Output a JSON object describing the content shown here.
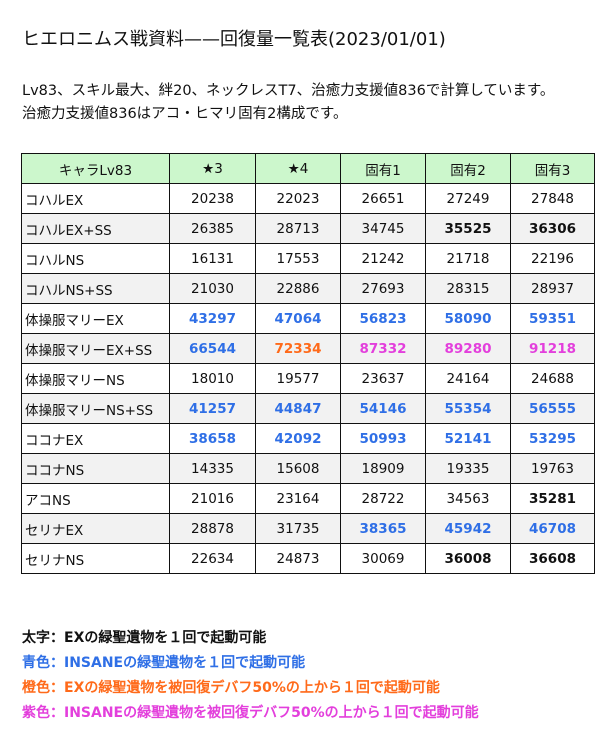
{
  "title": "ヒエロニムス戦資料——回復量一覧表(2023/01/01)",
  "description": [
    "Lv83、スキル最大、絆20、ネックレスT7、治癒力支援値836で計算しています。",
    "治癒力支援値836はアコ・ヒマリ固有2構成です。"
  ],
  "colors": {
    "header_bg": "#ccf7cc",
    "alt_row_bg": "#f2f2f2",
    "bold": "#111111",
    "blue": "#2f6fe6",
    "orange": "#ff6a1a",
    "magenta": "#e33fdc"
  },
  "table": {
    "headers": [
      "キャラLv83",
      "★3",
      "★4",
      "固有1",
      "固有2",
      "固有3"
    ],
    "rows": [
      {
        "name": "コハルEX",
        "values": [
          "20238",
          "22023",
          "26651",
          "27249",
          "27848"
        ],
        "styles": [
          "normal",
          "normal",
          "normal",
          "normal",
          "normal"
        ]
      },
      {
        "name": "コハルEX+SS",
        "values": [
          "26385",
          "28713",
          "34745",
          "35525",
          "36306"
        ],
        "styles": [
          "normal",
          "normal",
          "normal",
          "bold",
          "bold"
        ]
      },
      {
        "name": "コハルNS",
        "values": [
          "16131",
          "17553",
          "21242",
          "21718",
          "22196"
        ],
        "styles": [
          "normal",
          "normal",
          "normal",
          "normal",
          "normal"
        ]
      },
      {
        "name": "コハルNS+SS",
        "values": [
          "21030",
          "22886",
          "27693",
          "28315",
          "28937"
        ],
        "styles": [
          "normal",
          "normal",
          "normal",
          "normal",
          "normal"
        ]
      },
      {
        "name": "体操服マリーEX",
        "values": [
          "43297",
          "47064",
          "56823",
          "58090",
          "59351"
        ],
        "styles": [
          "blue",
          "blue",
          "blue",
          "blue",
          "blue"
        ]
      },
      {
        "name": "体操服マリーEX+SS",
        "values": [
          "66544",
          "72334",
          "87332",
          "89280",
          "91218"
        ],
        "styles": [
          "blue",
          "orange",
          "magenta",
          "magenta",
          "magenta"
        ]
      },
      {
        "name": "体操服マリーNS",
        "values": [
          "18010",
          "19577",
          "23637",
          "24164",
          "24688"
        ],
        "styles": [
          "normal",
          "normal",
          "normal",
          "normal",
          "normal"
        ]
      },
      {
        "name": "体操服マリーNS+SS",
        "values": [
          "41257",
          "44847",
          "54146",
          "55354",
          "56555"
        ],
        "styles": [
          "blue",
          "blue",
          "blue",
          "blue",
          "blue"
        ]
      },
      {
        "name": "ココナEX",
        "values": [
          "38658",
          "42092",
          "50993",
          "52141",
          "53295"
        ],
        "styles": [
          "blue",
          "blue",
          "blue",
          "blue",
          "blue"
        ]
      },
      {
        "name": "ココナNS",
        "values": [
          "14335",
          "15608",
          "18909",
          "19335",
          "19763"
        ],
        "styles": [
          "normal",
          "normal",
          "normal",
          "normal",
          "normal"
        ]
      },
      {
        "name": "アコNS",
        "values": [
          "21016",
          "23164",
          "28722",
          "34563",
          "35281"
        ],
        "styles": [
          "normal",
          "normal",
          "normal",
          "normal",
          "bold"
        ]
      },
      {
        "name": "セリナEX",
        "values": [
          "28878",
          "31735",
          "38365",
          "45942",
          "46708"
        ],
        "styles": [
          "normal",
          "normal",
          "blue",
          "blue",
          "blue"
        ]
      },
      {
        "name": "セリナNS",
        "values": [
          "22634",
          "24873",
          "30069",
          "36008",
          "36608"
        ],
        "styles": [
          "normal",
          "normal",
          "normal",
          "bold",
          "bold"
        ]
      }
    ]
  },
  "legend": [
    {
      "text": "太字：EXの緑聖遺物を１回で起動可能",
      "style": "bold"
    },
    {
      "text": "青色：INSANEの緑聖遺物を１回で起動可能",
      "style": "blue"
    },
    {
      "text": "橙色：EXの緑聖遺物を被回復デバフ50%の上から１回で起動可能",
      "style": "orange"
    },
    {
      "text": "紫色：INSANEの緑聖遺物を被回復デバフ50%の上から１回で起動可能",
      "style": "magenta"
    }
  ]
}
